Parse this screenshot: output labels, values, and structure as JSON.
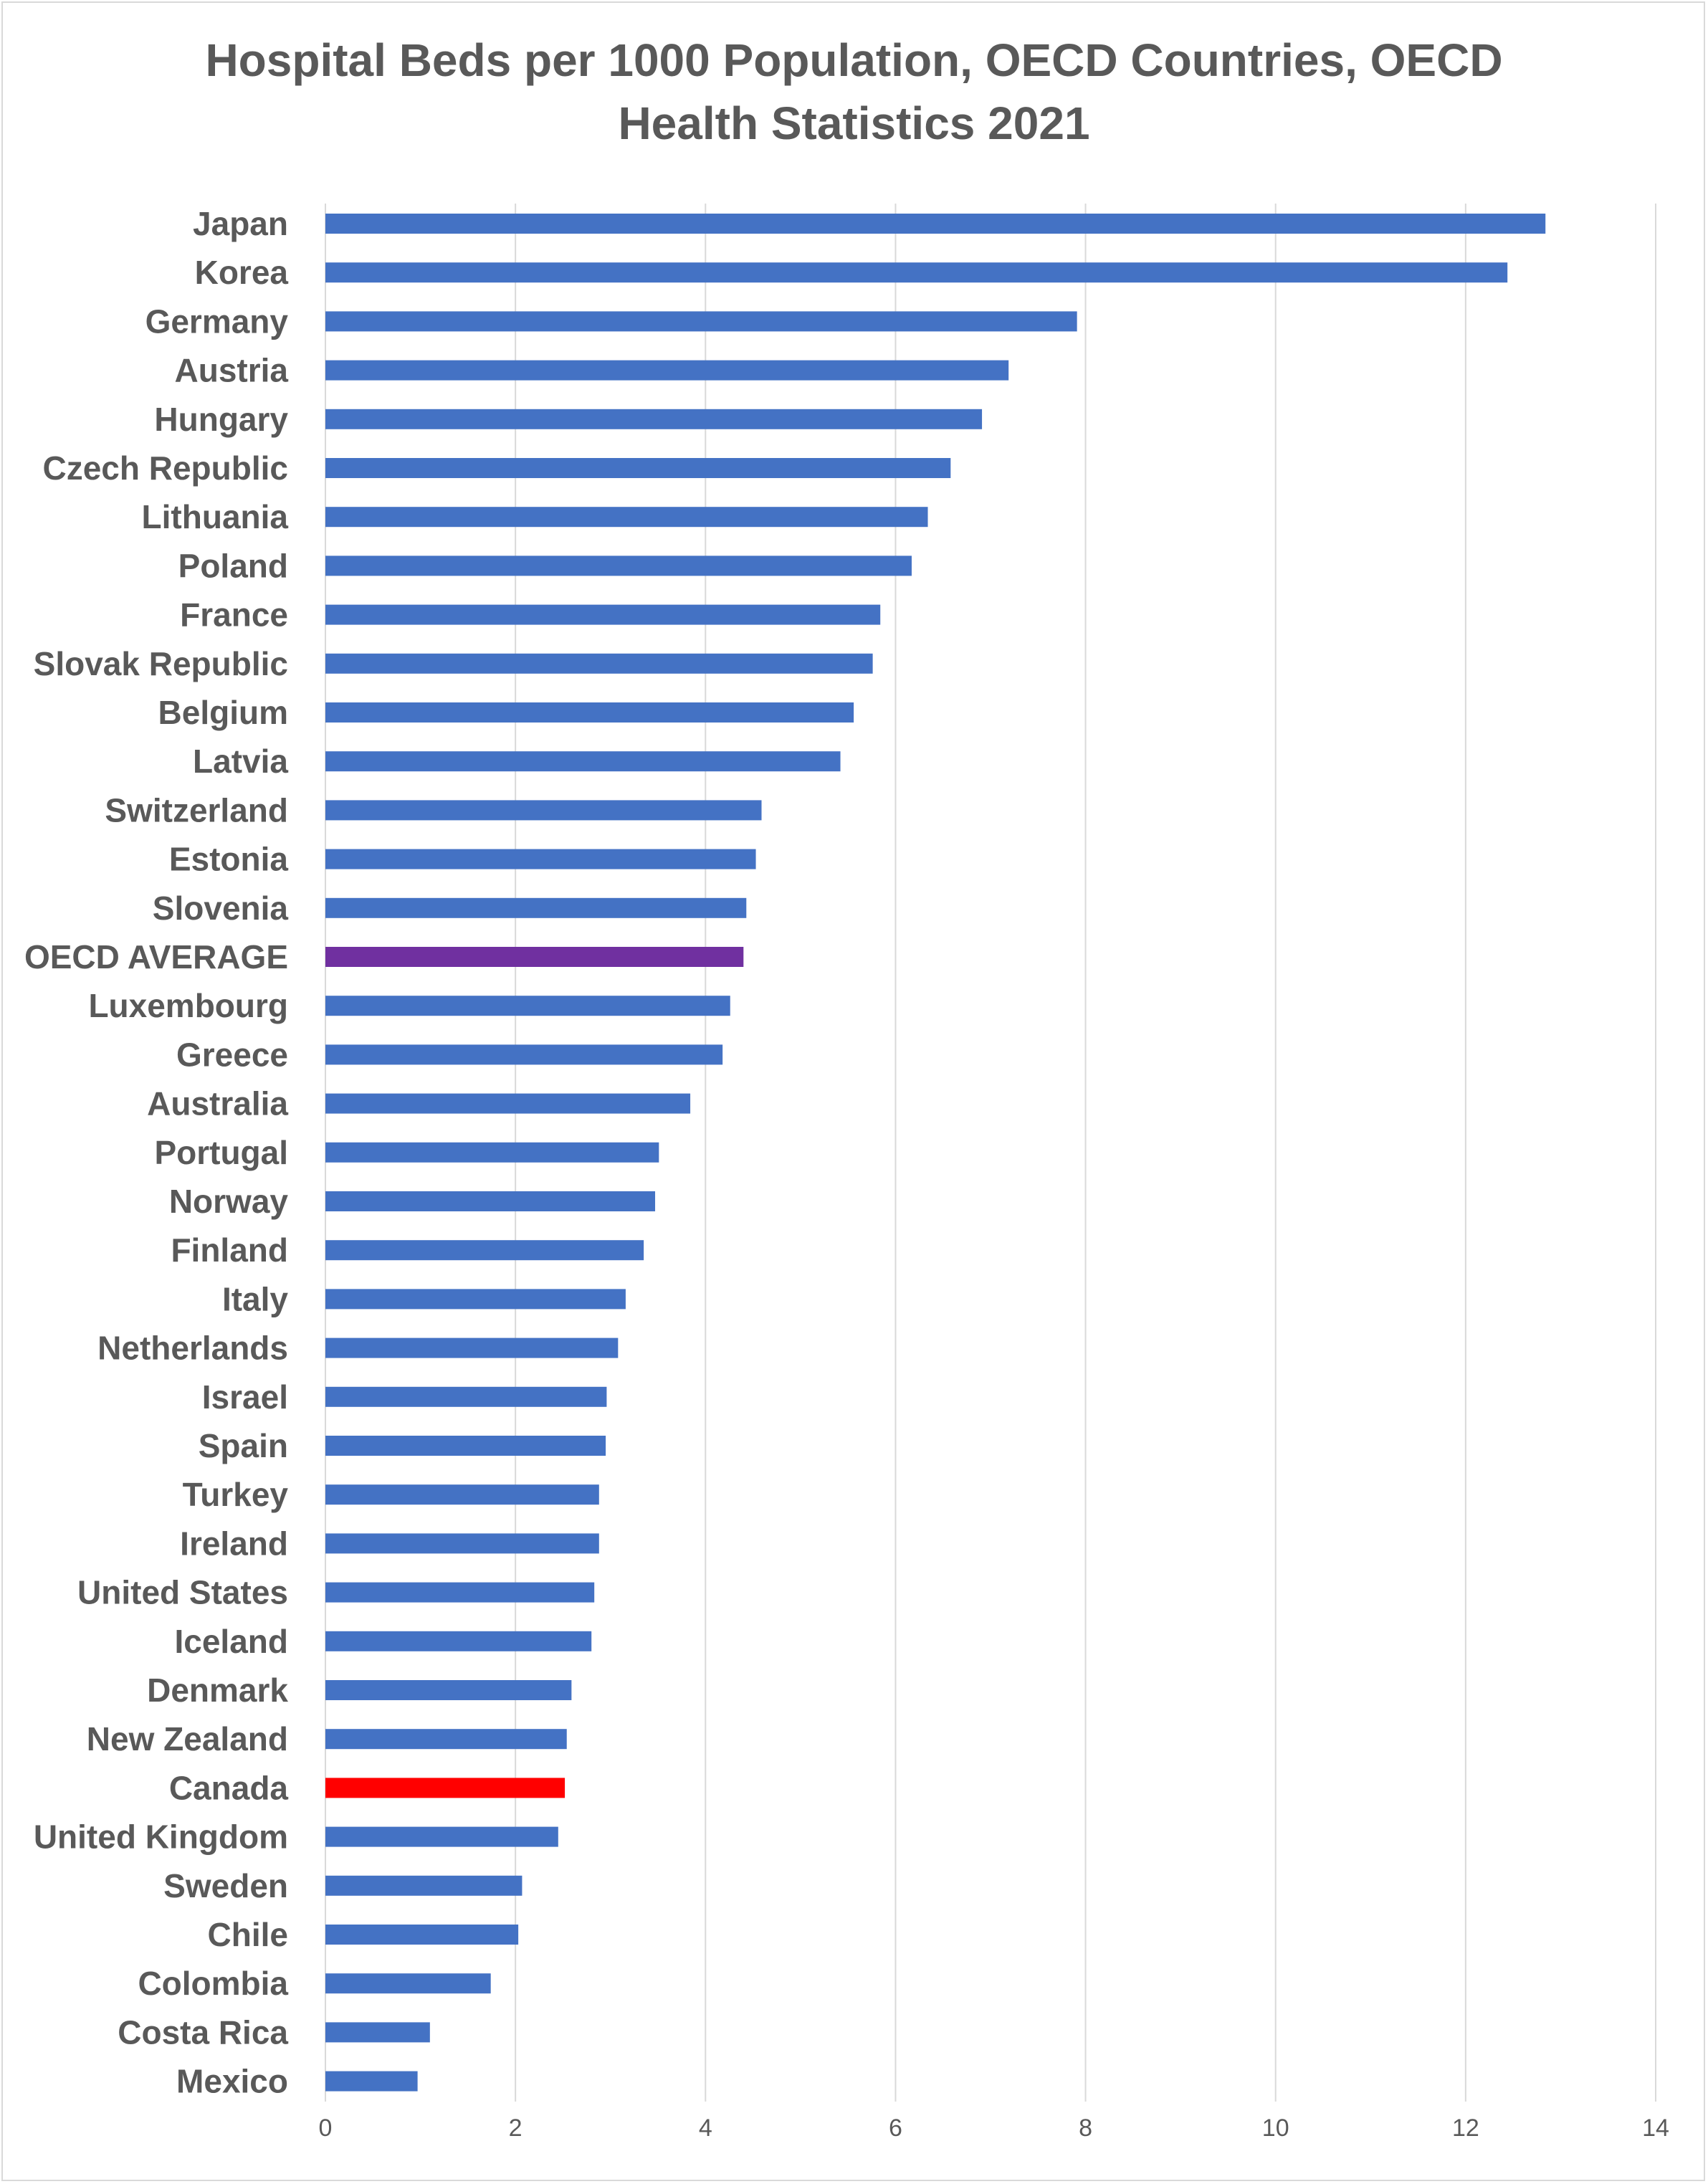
{
  "chart_data": {
    "type": "bar",
    "orientation": "horizontal",
    "title_lines": [
      "Hospital  Beds per 1000 Population, OECD Countries, OECD",
      "Health Statistics 2021"
    ],
    "xlabel": "",
    "ylabel": "",
    "xlim": [
      0,
      14
    ],
    "x_ticks": [
      0,
      2,
      4,
      6,
      8,
      10,
      12,
      14
    ],
    "grid": "vertical",
    "colors": {
      "default": "#4472C4",
      "highlight_average": "#7030A0",
      "highlight_canada": "#FF0000",
      "grid": "#d9d9d9",
      "text": "#595959"
    },
    "bars": [
      {
        "label": "Japan",
        "value": 12.84,
        "color": "#4472C4"
      },
      {
        "label": "Korea",
        "value": 12.44,
        "color": "#4472C4"
      },
      {
        "label": "Germany",
        "value": 7.91,
        "color": "#4472C4"
      },
      {
        "label": "Austria",
        "value": 7.19,
        "color": "#4472C4"
      },
      {
        "label": "Hungary",
        "value": 6.91,
        "color": "#4472C4"
      },
      {
        "label": "Czech Republic",
        "value": 6.58,
        "color": "#4472C4"
      },
      {
        "label": "Lithuania",
        "value": 6.34,
        "color": "#4472C4"
      },
      {
        "label": "Poland",
        "value": 6.17,
        "color": "#4472C4"
      },
      {
        "label": "France",
        "value": 5.84,
        "color": "#4472C4"
      },
      {
        "label": "Slovak Republic",
        "value": 5.76,
        "color": "#4472C4"
      },
      {
        "label": "Belgium",
        "value": 5.56,
        "color": "#4472C4"
      },
      {
        "label": "Latvia",
        "value": 5.42,
        "color": "#4472C4"
      },
      {
        "label": "Switzerland",
        "value": 4.59,
        "color": "#4472C4"
      },
      {
        "label": "Estonia",
        "value": 4.53,
        "color": "#4472C4"
      },
      {
        "label": "Slovenia",
        "value": 4.43,
        "color": "#4472C4"
      },
      {
        "label": "OECD AVERAGE",
        "value": 4.4,
        "color": "#7030A0"
      },
      {
        "label": "Luxembourg",
        "value": 4.26,
        "color": "#4472C4"
      },
      {
        "label": "Greece",
        "value": 4.18,
        "color": "#4472C4"
      },
      {
        "label": "Australia",
        "value": 3.84,
        "color": "#4472C4"
      },
      {
        "label": "Portugal",
        "value": 3.51,
        "color": "#4472C4"
      },
      {
        "label": "Norway",
        "value": 3.47,
        "color": "#4472C4"
      },
      {
        "label": "Finland",
        "value": 3.35,
        "color": "#4472C4"
      },
      {
        "label": "Italy",
        "value": 3.16,
        "color": "#4472C4"
      },
      {
        "label": "Netherlands",
        "value": 3.08,
        "color": "#4472C4"
      },
      {
        "label": "Israel",
        "value": 2.96,
        "color": "#4472C4"
      },
      {
        "label": "Spain",
        "value": 2.95,
        "color": "#4472C4"
      },
      {
        "label": "Turkey",
        "value": 2.88,
        "color": "#4472C4"
      },
      {
        "label": "Ireland",
        "value": 2.88,
        "color": "#4472C4"
      },
      {
        "label": "United States",
        "value": 2.83,
        "color": "#4472C4"
      },
      {
        "label": "Iceland",
        "value": 2.8,
        "color": "#4472C4"
      },
      {
        "label": "Denmark",
        "value": 2.59,
        "color": "#4472C4"
      },
      {
        "label": "New Zealand",
        "value": 2.54,
        "color": "#4472C4"
      },
      {
        "label": "Canada",
        "value": 2.52,
        "color": "#FF0000"
      },
      {
        "label": "United Kingdom",
        "value": 2.45,
        "color": "#4472C4"
      },
      {
        "label": "Sweden",
        "value": 2.07,
        "color": "#4472C4"
      },
      {
        "label": "Chile",
        "value": 2.03,
        "color": "#4472C4"
      },
      {
        "label": "Colombia",
        "value": 1.74,
        "color": "#4472C4"
      },
      {
        "label": "Costa Rica",
        "value": 1.1,
        "color": "#4472C4"
      },
      {
        "label": "Mexico",
        "value": 0.97,
        "color": "#4472C4"
      }
    ]
  }
}
